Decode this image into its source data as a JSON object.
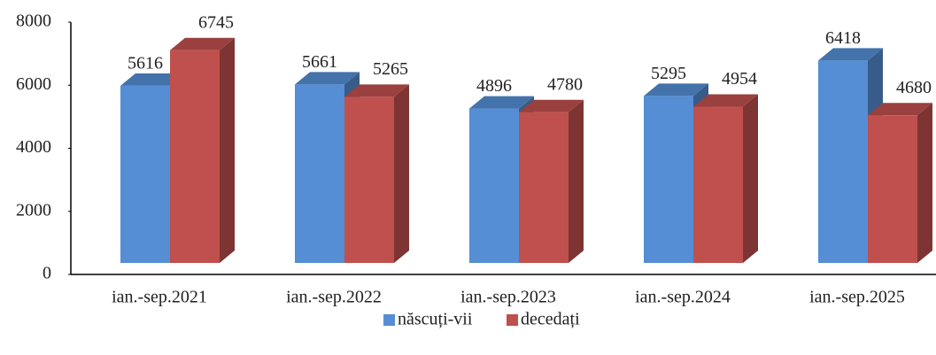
{
  "chart_data": {
    "type": "bar3d",
    "categories": [
      "ian.-sep.2021",
      "ian.-sep.2022",
      "ian.-sep.2023",
      "ian.-sep.2024",
      "ian.-sep.2025"
    ],
    "series": [
      {
        "name": "născuți-vii",
        "color": "#558ed5",
        "values": [
          5616,
          5661,
          4896,
          5295,
          6418
        ]
      },
      {
        "name": "decedați",
        "color": "#c0504d",
        "values": [
          6745,
          5265,
          4780,
          4954,
          4680
        ]
      }
    ],
    "ylim": [
      0,
      8000
    ],
    "yticks": [
      0,
      2000,
      4000,
      6000,
      8000
    ],
    "legend": "bottom"
  }
}
